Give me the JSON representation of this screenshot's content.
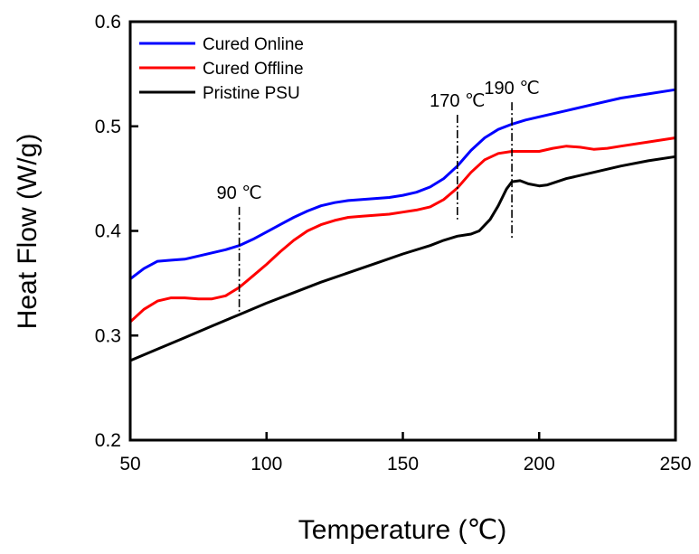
{
  "chart_data": {
    "type": "line",
    "xlabel": "Temperature  (℃)",
    "ylabel": "Heat Flow  (W/g)",
    "xlim": [
      50,
      250
    ],
    "ylim": [
      0.2,
      0.6
    ],
    "xticks": [
      "50",
      "100",
      "150",
      "200",
      "250"
    ],
    "yticks": [
      "0.2",
      "0.3",
      "0.4",
      "0.5",
      "0.6"
    ],
    "grid": false,
    "legend_position": "top-left",
    "series": [
      {
        "name": "Cured Online",
        "color": "#0000ff",
        "points": [
          [
            50,
            0.354
          ],
          [
            55,
            0.364
          ],
          [
            60,
            0.371
          ],
          [
            65,
            0.372
          ],
          [
            70,
            0.373
          ],
          [
            75,
            0.376
          ],
          [
            80,
            0.379
          ],
          [
            85,
            0.382
          ],
          [
            90,
            0.386
          ],
          [
            95,
            0.392
          ],
          [
            100,
            0.399
          ],
          [
            105,
            0.406
          ],
          [
            110,
            0.413
          ],
          [
            115,
            0.419
          ],
          [
            120,
            0.424
          ],
          [
            125,
            0.427
          ],
          [
            130,
            0.429
          ],
          [
            135,
            0.43
          ],
          [
            140,
            0.431
          ],
          [
            145,
            0.432
          ],
          [
            150,
            0.434
          ],
          [
            155,
            0.437
          ],
          [
            160,
            0.442
          ],
          [
            165,
            0.45
          ],
          [
            170,
            0.462
          ],
          [
            175,
            0.477
          ],
          [
            180,
            0.489
          ],
          [
            185,
            0.497
          ],
          [
            190,
            0.502
          ],
          [
            195,
            0.506
          ],
          [
            200,
            0.509
          ],
          [
            210,
            0.515
          ],
          [
            220,
            0.521
          ],
          [
            230,
            0.527
          ],
          [
            240,
            0.531
          ],
          [
            250,
            0.535
          ]
        ]
      },
      {
        "name": "Cured Offline",
        "color": "#ff0000",
        "points": [
          [
            50,
            0.313
          ],
          [
            55,
            0.325
          ],
          [
            60,
            0.333
          ],
          [
            65,
            0.336
          ],
          [
            70,
            0.336
          ],
          [
            75,
            0.335
          ],
          [
            80,
            0.335
          ],
          [
            85,
            0.338
          ],
          [
            90,
            0.346
          ],
          [
            95,
            0.357
          ],
          [
            100,
            0.368
          ],
          [
            105,
            0.38
          ],
          [
            110,
            0.391
          ],
          [
            115,
            0.4
          ],
          [
            120,
            0.406
          ],
          [
            125,
            0.41
          ],
          [
            130,
            0.413
          ],
          [
            135,
            0.414
          ],
          [
            140,
            0.415
          ],
          [
            145,
            0.416
          ],
          [
            150,
            0.418
          ],
          [
            155,
            0.42
          ],
          [
            160,
            0.423
          ],
          [
            165,
            0.43
          ],
          [
            170,
            0.441
          ],
          [
            175,
            0.456
          ],
          [
            180,
            0.468
          ],
          [
            185,
            0.474
          ],
          [
            190,
            0.476
          ],
          [
            195,
            0.476
          ],
          [
            200,
            0.476
          ],
          [
            205,
            0.479
          ],
          [
            210,
            0.481
          ],
          [
            215,
            0.48
          ],
          [
            220,
            0.478
          ],
          [
            225,
            0.479
          ],
          [
            230,
            0.481
          ],
          [
            240,
            0.485
          ],
          [
            250,
            0.489
          ]
        ]
      },
      {
        "name": "Pristine PSU",
        "color": "#000000",
        "points": [
          [
            50,
            0.276
          ],
          [
            60,
            0.287
          ],
          [
            70,
            0.298
          ],
          [
            80,
            0.309
          ],
          [
            90,
            0.32
          ],
          [
            100,
            0.331
          ],
          [
            110,
            0.341
          ],
          [
            120,
            0.351
          ],
          [
            130,
            0.36
          ],
          [
            140,
            0.369
          ],
          [
            150,
            0.378
          ],
          [
            160,
            0.386
          ],
          [
            165,
            0.391
          ],
          [
            170,
            0.395
          ],
          [
            175,
            0.397
          ],
          [
            178,
            0.4
          ],
          [
            182,
            0.411
          ],
          [
            185,
            0.424
          ],
          [
            188,
            0.44
          ],
          [
            190,
            0.447
          ],
          [
            193,
            0.448
          ],
          [
            196,
            0.445
          ],
          [
            200,
            0.443
          ],
          [
            203,
            0.444
          ],
          [
            210,
            0.45
          ],
          [
            220,
            0.456
          ],
          [
            230,
            0.462
          ],
          [
            240,
            0.467
          ],
          [
            250,
            0.471
          ]
        ]
      }
    ],
    "annotations": [
      {
        "label": "90 ℃",
        "x": 90,
        "y_from": 0.323,
        "y_to": 0.423
      },
      {
        "label": "170 ℃",
        "x": 170,
        "y_from": 0.411,
        "y_to": 0.511
      },
      {
        "label": "190 ℃",
        "x": 190,
        "y_from": 0.393,
        "y_to": 0.523
      }
    ]
  }
}
